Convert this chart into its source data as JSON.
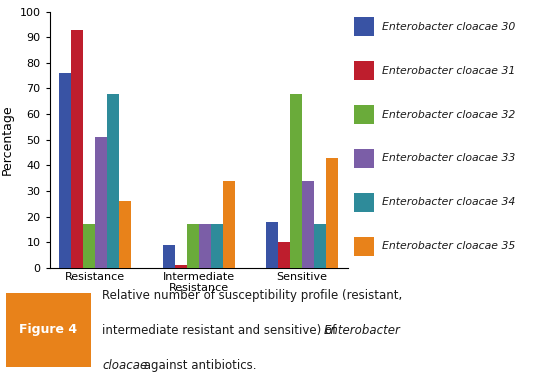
{
  "categories": [
    "Resistance",
    "Intermediate\nResistance",
    "Sensitive"
  ],
  "series": [
    {
      "label": "Enterobacter cloacae 30",
      "color": "#3953a4",
      "values": [
        76,
        9,
        18
      ]
    },
    {
      "label": "Enterobacter cloacae 31",
      "color": "#be1e2d",
      "values": [
        93,
        1,
        10
      ]
    },
    {
      "label": "Enterobacter cloacae 32",
      "color": "#6aab3a",
      "values": [
        17,
        17,
        68
      ]
    },
    {
      "label": "Enterobacter cloacae 33",
      "color": "#7b5ea7",
      "values": [
        51,
        17,
        34
      ]
    },
    {
      "label": "Enterobacter cloacae 34",
      "color": "#2e8b9a",
      "values": [
        68,
        17,
        17
      ]
    },
    {
      "label": "Enterobacter cloacae 35",
      "color": "#e8821a",
      "values": [
        26,
        34,
        43
      ]
    }
  ],
  "ylabel": "Percentage",
  "ylim": [
    0,
    100
  ],
  "yticks": [
    0,
    10,
    20,
    30,
    40,
    50,
    60,
    70,
    80,
    90,
    100
  ],
  "figure_label": "Figure 4",
  "figure_label_bg": "#e8821a",
  "background_color": "#ffffff",
  "caption_line1": "Relative number of susceptibility profile (resistant,",
  "caption_line2_pre": "intermediate resistant and sensitive) of ",
  "caption_line2_italic": "Enterobacter",
  "caption_line3_italic": "cloacae",
  "caption_line3_post": " against antibiotics."
}
